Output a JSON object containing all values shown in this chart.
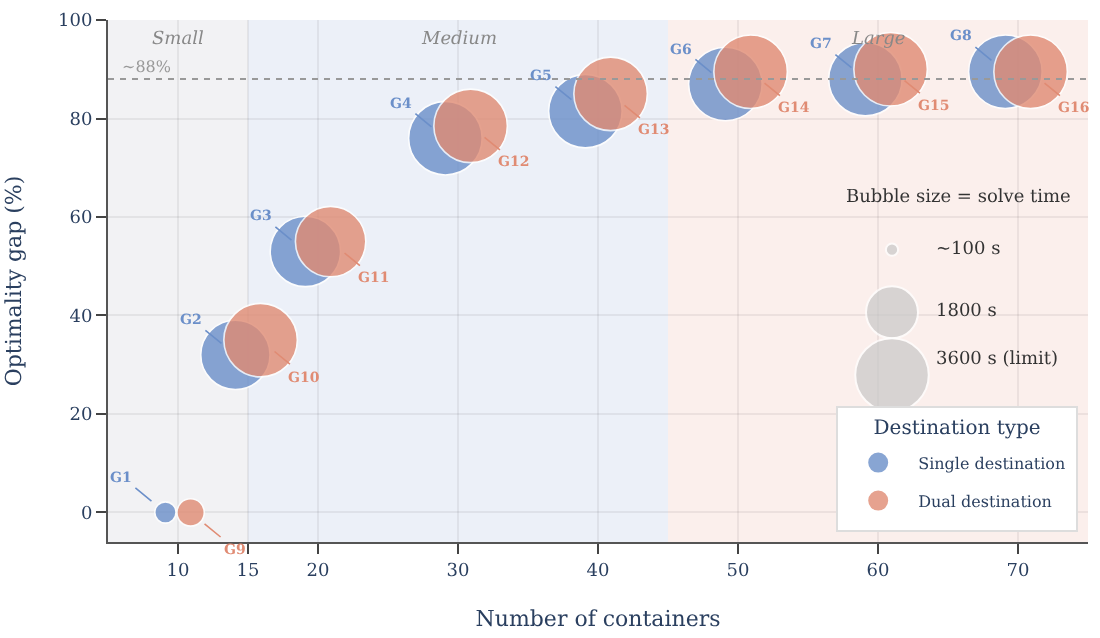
{
  "chart_data": {
    "type": "bubble",
    "xlabel": "Number of containers",
    "ylabel": "Optimality gap (%)",
    "legend_title": "Destination type",
    "series": [
      {
        "name": "Single destination",
        "color": "#6b8fc9",
        "x": [
          9.1,
          14.1,
          19.1,
          29.1,
          39.1,
          49.1,
          59.1,
          69.1
        ],
        "values": [
          0,
          32,
          53,
          76,
          81.5,
          87,
          88,
          89.5
        ],
        "sizes": [
          300,
          3200,
          3300,
          3600,
          3600,
          3600,
          3600,
          3600
        ],
        "value_labels": [
          "G1",
          "G2",
          "G3",
          "G4",
          "G5",
          "G6",
          "G7",
          "G8"
        ]
      },
      {
        "name": "Dual destination",
        "color": "#e08b73",
        "x": [
          10.9,
          15.9,
          20.9,
          30.9,
          40.9,
          50.9,
          60.9,
          70.9
        ],
        "values": [
          0,
          35,
          55,
          78.5,
          85,
          89.5,
          90,
          89.5
        ],
        "sizes": [
          500,
          3600,
          3300,
          3600,
          3600,
          3600,
          3600,
          3600
        ],
        "value_labels": [
          "G9",
          "G10",
          "G11",
          "G12",
          "G13",
          "G14",
          "G15",
          "G16"
        ]
      }
    ],
    "size_legend": [
      {
        "value": 100,
        "label": "~100 s"
      },
      {
        "value": 1800,
        "label": "1800 s"
      },
      {
        "value": 3600,
        "label": "3600 s (limit)"
      }
    ],
    "annotations": [
      "Bubble size = solve time"
    ],
    "bands": [
      {
        "axis": "x",
        "from": 5,
        "to": 15,
        "label": "Small",
        "color": "#f2f2f4"
      },
      {
        "axis": "x",
        "from": 15,
        "to": 45,
        "label": "Medium",
        "color": "#ecf0f8"
      },
      {
        "axis": "x",
        "from": 45,
        "to": 75,
        "label": "Large",
        "color": "#fbefec"
      }
    ],
    "ref_lines": [
      {
        "axis": "y",
        "value": 88,
        "label": "~88%",
        "color": "#999999",
        "line_style": "dotted"
      }
    ],
    "xlim": [
      5,
      75
    ],
    "xticks": [
      10,
      15,
      20,
      30,
      40,
      50,
      60,
      70
    ],
    "ylim": [
      -6,
      100
    ],
    "yticks": [
      0,
      20,
      40,
      60,
      80,
      100
    ],
    "grid": true,
    "legend": "bottom right"
  }
}
